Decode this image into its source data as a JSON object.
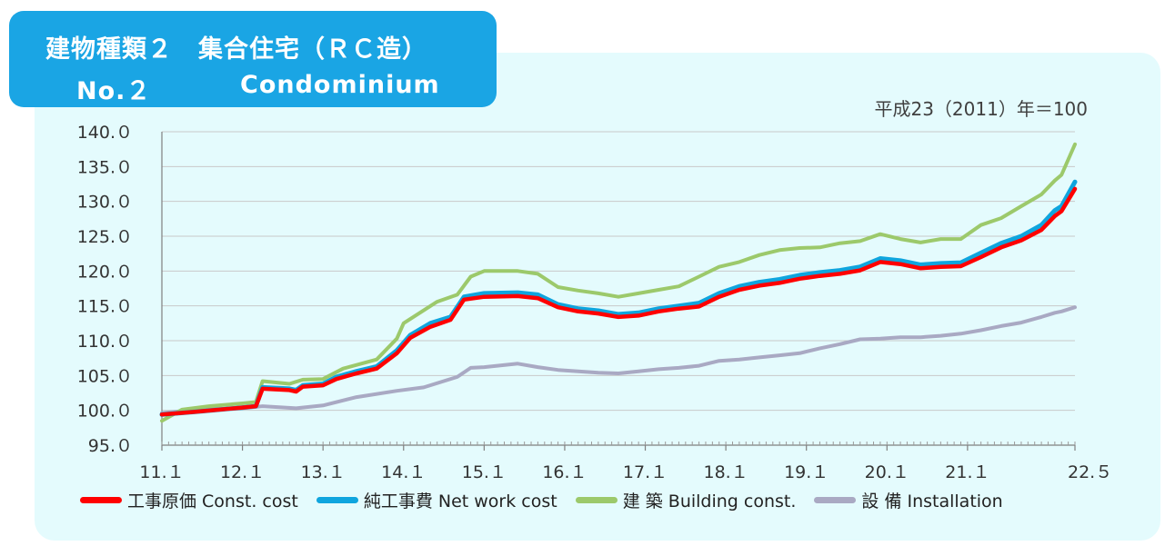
{
  "title": {
    "line1": "建物種類２　集合住宅（ＲＣ造）",
    "line2_no": "No.２",
    "line2_name": "Condominium"
  },
  "note": "平成23（2011）年＝100",
  "colors": {
    "panel": "#e4fbfd",
    "title_bg": "#1aa5e4",
    "const_cost": "#ff0000",
    "net_work_cost": "#0fa5de",
    "building": "#9cc96b",
    "installation": "#a9a9c3"
  },
  "chart_data": {
    "type": "line",
    "x_tick_labels": [
      "11.１",
      "12.１",
      "13.１",
      "14.１",
      "15.１",
      "16.１",
      "17.１",
      "18.１",
      "19.１",
      "20.１",
      "21.１",
      "22.５"
    ],
    "y_tick_labels": [
      "95.０",
      "100.０",
      "105.０",
      "110.０",
      "115.０",
      "120.０",
      "125.０",
      "130.０",
      "135.０",
      "140.０"
    ],
    "ylim": [
      95,
      140
    ],
    "x_start": "2011-01",
    "x_end": "2022-05",
    "grid": "horizontal",
    "legend_position": "bottom",
    "series": [
      {
        "name": "工事原価 Const. cost",
        "color": "#ff0000",
        "points": [
          [
            "2011-01",
            99.4
          ],
          [
            "2011-06",
            99.8
          ],
          [
            "2012-01",
            100.4
          ],
          [
            "2012-03",
            100.6
          ],
          [
            "2012-04",
            103.1
          ],
          [
            "2012-08",
            102.9
          ],
          [
            "2012-09",
            102.7
          ],
          [
            "2012-10",
            103.4
          ],
          [
            "2013-01",
            103.6
          ],
          [
            "2013-03",
            104.5
          ],
          [
            "2013-06",
            105.3
          ],
          [
            "2013-09",
            106.0
          ],
          [
            "2013-12",
            108.2
          ],
          [
            "2014-02",
            110.4
          ],
          [
            "2014-05",
            112.0
          ],
          [
            "2014-08",
            113.0
          ],
          [
            "2014-10",
            115.9
          ],
          [
            "2015-01",
            116.3
          ],
          [
            "2015-06",
            116.4
          ],
          [
            "2015-09",
            116.1
          ],
          [
            "2015-12",
            114.8
          ],
          [
            "2016-03",
            114.2
          ],
          [
            "2016-06",
            113.9
          ],
          [
            "2016-09",
            113.4
          ],
          [
            "2016-12",
            113.6
          ],
          [
            "2017-03",
            114.2
          ],
          [
            "2017-06",
            114.6
          ],
          [
            "2017-09",
            114.9
          ],
          [
            "2017-12",
            116.3
          ],
          [
            "2018-03",
            117.3
          ],
          [
            "2018-06",
            117.9
          ],
          [
            "2018-09",
            118.3
          ],
          [
            "2018-12",
            118.9
          ],
          [
            "2019-03",
            119.3
          ],
          [
            "2019-06",
            119.6
          ],
          [
            "2019-09",
            120.1
          ],
          [
            "2019-12",
            121.3
          ],
          [
            "2020-03",
            121.0
          ],
          [
            "2020-06",
            120.4
          ],
          [
            "2020-09",
            120.6
          ],
          [
            "2020-12",
            120.7
          ],
          [
            "2021-03",
            122.0
          ],
          [
            "2021-06",
            123.4
          ],
          [
            "2021-09",
            124.4
          ],
          [
            "2021-12",
            125.9
          ],
          [
            "2022-02",
            127.9
          ],
          [
            "2022-03",
            128.6
          ],
          [
            "2022-05",
            131.8
          ]
        ]
      },
      {
        "name": "純工事費 Net work cost",
        "color": "#0fa5de",
        "points": [
          [
            "2011-01",
            99.4
          ],
          [
            "2011-06",
            99.8
          ],
          [
            "2012-01",
            100.4
          ],
          [
            "2012-03",
            100.6
          ],
          [
            "2012-04",
            103.3
          ],
          [
            "2012-08",
            103.1
          ],
          [
            "2012-09",
            102.9
          ],
          [
            "2012-10",
            103.6
          ],
          [
            "2013-01",
            103.8
          ],
          [
            "2013-03",
            104.8
          ],
          [
            "2013-06",
            105.6
          ],
          [
            "2013-09",
            106.3
          ],
          [
            "2013-12",
            108.6
          ],
          [
            "2014-02",
            110.8
          ],
          [
            "2014-05",
            112.5
          ],
          [
            "2014-08",
            113.4
          ],
          [
            "2014-10",
            116.3
          ],
          [
            "2015-01",
            116.8
          ],
          [
            "2015-06",
            116.9
          ],
          [
            "2015-09",
            116.6
          ],
          [
            "2015-12",
            115.2
          ],
          [
            "2016-03",
            114.6
          ],
          [
            "2016-06",
            114.3
          ],
          [
            "2016-09",
            113.8
          ],
          [
            "2016-12",
            114.0
          ],
          [
            "2017-03",
            114.6
          ],
          [
            "2017-06",
            115.0
          ],
          [
            "2017-09",
            115.4
          ],
          [
            "2017-12",
            116.8
          ],
          [
            "2018-03",
            117.8
          ],
          [
            "2018-06",
            118.4
          ],
          [
            "2018-09",
            118.8
          ],
          [
            "2018-12",
            119.4
          ],
          [
            "2019-03",
            119.8
          ],
          [
            "2019-06",
            120.1
          ],
          [
            "2019-09",
            120.6
          ],
          [
            "2019-12",
            121.8
          ],
          [
            "2020-03",
            121.5
          ],
          [
            "2020-06",
            120.9
          ],
          [
            "2020-09",
            121.1
          ],
          [
            "2020-12",
            121.2
          ],
          [
            "2021-03",
            122.6
          ],
          [
            "2021-06",
            124.0
          ],
          [
            "2021-09",
            125.0
          ],
          [
            "2021-12",
            126.6
          ],
          [
            "2022-02",
            128.7
          ],
          [
            "2022-03",
            129.3
          ],
          [
            "2022-05",
            132.8
          ]
        ]
      },
      {
        "name": "建 築 Building const.",
        "color": "#9cc96b",
        "points": [
          [
            "2011-01",
            98.5
          ],
          [
            "2011-04",
            100.1
          ],
          [
            "2011-08",
            100.6
          ],
          [
            "2012-01",
            101.0
          ],
          [
            "2012-03",
            101.2
          ],
          [
            "2012-04",
            104.2
          ],
          [
            "2012-08",
            103.8
          ],
          [
            "2012-10",
            104.4
          ],
          [
            "2013-01",
            104.5
          ],
          [
            "2013-04",
            106.0
          ],
          [
            "2013-09",
            107.3
          ],
          [
            "2013-12",
            110.3
          ],
          [
            "2014-01",
            112.5
          ],
          [
            "2014-06",
            115.6
          ],
          [
            "2014-09",
            116.6
          ],
          [
            "2014-11",
            119.2
          ],
          [
            "2015-01",
            120.0
          ],
          [
            "2015-06",
            120.0
          ],
          [
            "2015-09",
            119.6
          ],
          [
            "2015-12",
            117.7
          ],
          [
            "2016-03",
            117.2
          ],
          [
            "2016-06",
            116.8
          ],
          [
            "2016-09",
            116.3
          ],
          [
            "2016-12",
            116.8
          ],
          [
            "2017-03",
            117.3
          ],
          [
            "2017-06",
            117.8
          ],
          [
            "2017-09",
            119.2
          ],
          [
            "2017-12",
            120.6
          ],
          [
            "2018-03",
            121.3
          ],
          [
            "2018-06",
            122.3
          ],
          [
            "2018-09",
            123.0
          ],
          [
            "2018-12",
            123.3
          ],
          [
            "2019-03",
            123.4
          ],
          [
            "2019-06",
            124.0
          ],
          [
            "2019-09",
            124.3
          ],
          [
            "2019-12",
            125.3
          ],
          [
            "2020-03",
            124.6
          ],
          [
            "2020-06",
            124.1
          ],
          [
            "2020-09",
            124.6
          ],
          [
            "2020-12",
            124.6
          ],
          [
            "2021-03",
            126.6
          ],
          [
            "2021-06",
            127.6
          ],
          [
            "2021-09",
            129.3
          ],
          [
            "2021-12",
            131.0
          ],
          [
            "2022-02",
            133.0
          ],
          [
            "2022-03",
            133.8
          ],
          [
            "2022-05",
            138.2
          ]
        ]
      },
      {
        "name": "設 備 Installation",
        "color": "#a9a9c3",
        "points": [
          [
            "2011-01",
            99.6
          ],
          [
            "2011-06",
            100.1
          ],
          [
            "2012-01",
            100.3
          ],
          [
            "2012-04",
            100.6
          ],
          [
            "2012-09",
            100.3
          ],
          [
            "2013-01",
            100.7
          ],
          [
            "2013-06",
            101.9
          ],
          [
            "2013-12",
            102.8
          ],
          [
            "2014-04",
            103.3
          ],
          [
            "2014-09",
            104.8
          ],
          [
            "2014-11",
            106.1
          ],
          [
            "2015-01",
            106.2
          ],
          [
            "2015-06",
            106.7
          ],
          [
            "2015-09",
            106.2
          ],
          [
            "2015-12",
            105.8
          ],
          [
            "2016-03",
            105.6
          ],
          [
            "2016-06",
            105.4
          ],
          [
            "2016-09",
            105.3
          ],
          [
            "2016-12",
            105.6
          ],
          [
            "2017-03",
            105.9
          ],
          [
            "2017-06",
            106.1
          ],
          [
            "2017-09",
            106.4
          ],
          [
            "2017-12",
            107.1
          ],
          [
            "2018-03",
            107.3
          ],
          [
            "2018-06",
            107.6
          ],
          [
            "2018-09",
            107.9
          ],
          [
            "2018-12",
            108.2
          ],
          [
            "2019-03",
            108.9
          ],
          [
            "2019-06",
            109.5
          ],
          [
            "2019-09",
            110.2
          ],
          [
            "2019-12",
            110.3
          ],
          [
            "2020-03",
            110.5
          ],
          [
            "2020-06",
            110.5
          ],
          [
            "2020-09",
            110.7
          ],
          [
            "2020-12",
            111.0
          ],
          [
            "2021-03",
            111.5
          ],
          [
            "2021-06",
            112.1
          ],
          [
            "2021-09",
            112.6
          ],
          [
            "2021-12",
            113.4
          ],
          [
            "2022-02",
            114.0
          ],
          [
            "2022-03",
            114.2
          ],
          [
            "2022-05",
            114.8
          ]
        ]
      }
    ]
  }
}
